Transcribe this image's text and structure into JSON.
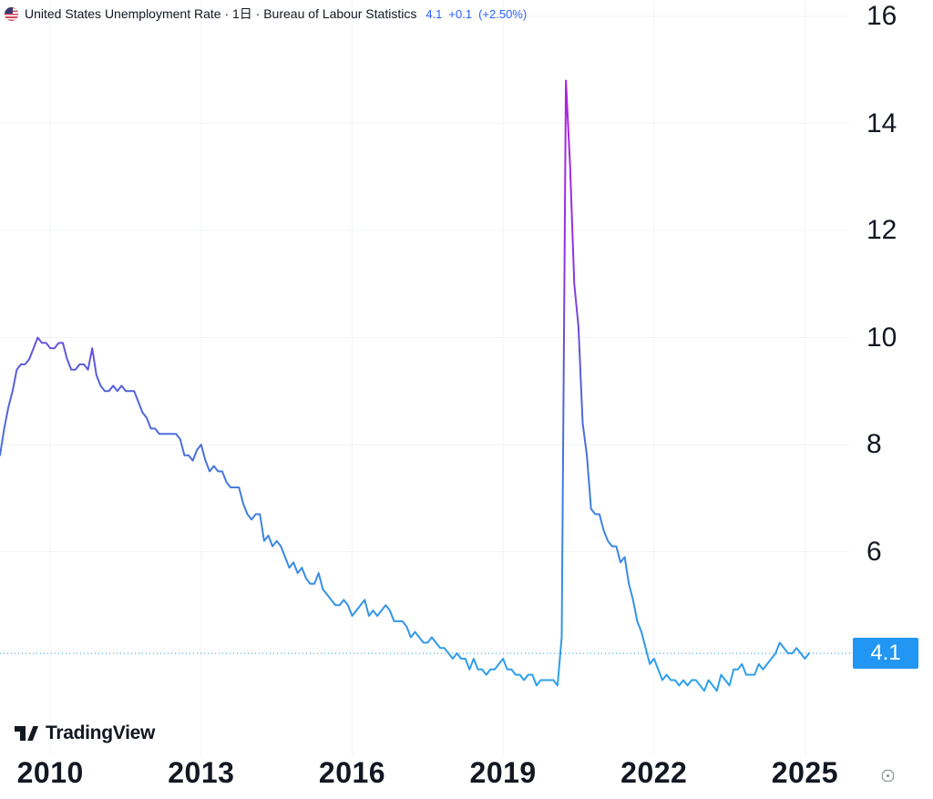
{
  "header": {
    "title": "United States Unemployment Rate · 1日 · Bureau of Labour Statistics",
    "last": "4.1",
    "change": "+0.1",
    "change_percent": "(+2.50%)",
    "accent_color": "#2962FF",
    "flag": "us-flag"
  },
  "chart_data": {
    "type": "line",
    "title": "United States Unemployment Rate",
    "interval": "1日",
    "source": "Bureau of Labour Statistics",
    "frequency": "monthly",
    "x_start": "2009-01",
    "x_end": "2025-02",
    "values": [
      7.8,
      8.3,
      8.7,
      9.0,
      9.4,
      9.5,
      9.5,
      9.6,
      9.8,
      10.0,
      9.9,
      9.9,
      9.8,
      9.8,
      9.9,
      9.9,
      9.6,
      9.4,
      9.4,
      9.5,
      9.5,
      9.4,
      9.8,
      9.3,
      9.1,
      9.0,
      9.0,
      9.1,
      9.0,
      9.1,
      9.0,
      9.0,
      9.0,
      8.8,
      8.6,
      8.5,
      8.3,
      8.3,
      8.2,
      8.2,
      8.2,
      8.2,
      8.2,
      8.1,
      7.8,
      7.8,
      7.7,
      7.9,
      8.0,
      7.7,
      7.5,
      7.6,
      7.5,
      7.5,
      7.3,
      7.2,
      7.2,
      7.2,
      6.9,
      6.7,
      6.6,
      6.7,
      6.7,
      6.2,
      6.3,
      6.1,
      6.2,
      6.1,
      5.9,
      5.7,
      5.8,
      5.6,
      5.7,
      5.5,
      5.4,
      5.4,
      5.6,
      5.3,
      5.2,
      5.1,
      5.0,
      5.0,
      5.1,
      5.0,
      4.8,
      4.9,
      5.0,
      5.1,
      4.8,
      4.9,
      4.8,
      4.9,
      5.0,
      4.9,
      4.7,
      4.7,
      4.7,
      4.6,
      4.4,
      4.5,
      4.4,
      4.3,
      4.3,
      4.4,
      4.3,
      4.2,
      4.2,
      4.1,
      4.0,
      4.1,
      4.0,
      4.0,
      3.8,
      4.0,
      3.8,
      3.8,
      3.7,
      3.8,
      3.8,
      3.9,
      4.0,
      3.8,
      3.8,
      3.7,
      3.7,
      3.6,
      3.7,
      3.7,
      3.5,
      3.6,
      3.6,
      3.6,
      3.6,
      3.5,
      4.4,
      14.8,
      13.2,
      11.0,
      10.2,
      8.4,
      7.8,
      6.8,
      6.7,
      6.7,
      6.4,
      6.2,
      6.1,
      6.1,
      5.8,
      5.9,
      5.4,
      5.1,
      4.7,
      4.5,
      4.2,
      3.9,
      4.0,
      3.8,
      3.6,
      3.7,
      3.6,
      3.6,
      3.5,
      3.6,
      3.5,
      3.6,
      3.6,
      3.5,
      3.4,
      3.6,
      3.5,
      3.4,
      3.7,
      3.6,
      3.5,
      3.8,
      3.8,
      3.9,
      3.7,
      3.7,
      3.7,
      3.9,
      3.8,
      3.9,
      4.0,
      4.1,
      4.3,
      4.2,
      4.1,
      4.1,
      4.2,
      4.1,
      4.0,
      4.1
    ],
    "y_ticks": [
      16,
      14,
      12,
      10,
      8,
      6
    ],
    "y_tick_labels": [
      "16",
      "14",
      "12",
      "10",
      "8",
      "6"
    ],
    "x_ticks": [
      2010,
      2013,
      2016,
      2019,
      2022,
      2025
    ],
    "x_tick_labels": [
      "2010",
      "2013",
      "2016",
      "2019",
      "2022",
      "2025"
    ],
    "ylim_visible": [
      2.9,
      16.3
    ],
    "grid": true,
    "legend_position": "top-left",
    "last_value": 4.1,
    "last_price_label": "4.1",
    "price_line_color": "#2196F3",
    "badge_color": "#2196F3",
    "grid_color": "#F1F3F6",
    "line_gradient_top_to_bottom": [
      {
        "offset": 0.0,
        "color": "#B21EE0"
      },
      {
        "offset": 0.3,
        "color": "#8F35DC"
      },
      {
        "offset": 0.5,
        "color": "#5560D8"
      },
      {
        "offset": 0.72,
        "color": "#3F82DF"
      },
      {
        "offset": 1.0,
        "color": "#2BA3EC"
      }
    ]
  },
  "footer": {
    "logo_text": "TradingView",
    "gear_icon": "settings-nut-icon",
    "gear_color": "#9598A1"
  }
}
